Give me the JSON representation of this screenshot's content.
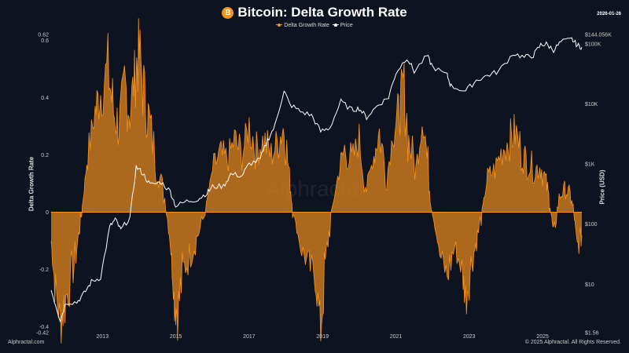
{
  "header": {
    "title": "Bitcoin: Delta Growth Rate",
    "logo_icon": "bitcoin-icon",
    "date": "2026-01-26"
  },
  "footer": {
    "left": "Alphractal.com",
    "right": "© 2025 Alphractal. All Rights Reserved.",
    "watermark": "Alphractal"
  },
  "chart_data": {
    "type": "area",
    "title": "Bitcoin: Delta Growth Rate",
    "ylabel": "Delta Growth Rate",
    "y2label": "Price (USD)",
    "xlim": [
      2011.6,
      2026.07
    ],
    "ylim": [
      -0.42,
      0.62
    ],
    "y2lim": [
      1.56,
      144056
    ],
    "y2scale": "log",
    "x_ticks": [
      "2013",
      "2015",
      "2017",
      "2019",
      "2021",
      "2023",
      "2025"
    ],
    "y_ticks": [
      "0.62",
      "0.6",
      "0.4",
      "0.2",
      "0",
      "-0.2",
      "-0.4",
      "-0.42"
    ],
    "y2_ticks": [
      "$144.056K",
      "$100K",
      "$10K",
      "$1K",
      "$100",
      "$10",
      "$1.56"
    ],
    "legend": {
      "placement": "top-center",
      "items": [
        "Delta Growth Rate",
        "Price"
      ]
    },
    "grid": false,
    "colors": {
      "delta": "#f7931a",
      "price": "#ffffff",
      "background": "#0d1320"
    },
    "series": [
      {
        "name": "Delta Growth Rate",
        "axis": "left",
        "points": [
          [
            2011.6,
            -0.1
          ],
          [
            2011.7,
            -0.25
          ],
          [
            2011.85,
            -0.38
          ],
          [
            2012.0,
            -0.3
          ],
          [
            2012.2,
            -0.2
          ],
          [
            2012.35,
            -0.08
          ],
          [
            2012.45,
            0.02
          ],
          [
            2012.6,
            0.2
          ],
          [
            2012.8,
            0.35
          ],
          [
            2012.95,
            0.42
          ],
          [
            2013.15,
            0.5
          ],
          [
            2013.3,
            0.35
          ],
          [
            2013.45,
            0.3
          ],
          [
            2013.6,
            0.45
          ],
          [
            2013.75,
            0.35
          ],
          [
            2013.9,
            0.5
          ],
          [
            2014.0,
            0.55
          ],
          [
            2014.15,
            0.4
          ],
          [
            2014.3,
            0.3
          ],
          [
            2014.5,
            0.15
          ],
          [
            2014.7,
            0.05
          ],
          [
            2014.85,
            -0.1
          ],
          [
            2014.95,
            -0.3
          ],
          [
            2015.05,
            -0.35
          ],
          [
            2015.2,
            -0.2
          ],
          [
            2015.4,
            -0.15
          ],
          [
            2015.6,
            -0.08
          ],
          [
            2015.8,
            0.0
          ],
          [
            2016.0,
            0.15
          ],
          [
            2016.2,
            0.2
          ],
          [
            2016.4,
            0.18
          ],
          [
            2016.6,
            0.25
          ],
          [
            2016.8,
            0.2
          ],
          [
            2017.0,
            0.3
          ],
          [
            2017.2,
            0.22
          ],
          [
            2017.4,
            0.25
          ],
          [
            2017.6,
            0.2
          ],
          [
            2017.8,
            0.25
          ],
          [
            2017.95,
            0.3
          ],
          [
            2018.1,
            0.12
          ],
          [
            2018.2,
            0.0
          ],
          [
            2018.4,
            -0.12
          ],
          [
            2018.6,
            -0.18
          ],
          [
            2018.8,
            -0.22
          ],
          [
            2018.95,
            -0.4
          ],
          [
            2019.1,
            -0.15
          ],
          [
            2019.25,
            0.0
          ],
          [
            2019.45,
            0.15
          ],
          [
            2019.6,
            0.22
          ],
          [
            2019.8,
            0.18
          ],
          [
            2020.0,
            0.25
          ],
          [
            2020.2,
            0.08
          ],
          [
            2020.4,
            0.2
          ],
          [
            2020.55,
            0.28
          ],
          [
            2020.75,
            0.12
          ],
          [
            2020.95,
            0.3
          ],
          [
            2021.1,
            0.35
          ],
          [
            2021.2,
            0.45
          ],
          [
            2021.35,
            0.25
          ],
          [
            2021.55,
            0.15
          ],
          [
            2021.75,
            0.35
          ],
          [
            2021.9,
            0.1
          ],
          [
            2022.0,
            0.0
          ],
          [
            2022.2,
            -0.15
          ],
          [
            2022.4,
            -0.22
          ],
          [
            2022.6,
            -0.12
          ],
          [
            2022.8,
            -0.2
          ],
          [
            2022.9,
            -0.3
          ],
          [
            2023.05,
            -0.18
          ],
          [
            2023.2,
            -0.1
          ],
          [
            2023.35,
            0.0
          ],
          [
            2023.5,
            0.12
          ],
          [
            2023.7,
            0.15
          ],
          [
            2023.9,
            0.22
          ],
          [
            2024.1,
            0.25
          ],
          [
            2024.25,
            0.28
          ],
          [
            2024.45,
            0.2
          ],
          [
            2024.6,
            0.17
          ],
          [
            2024.8,
            0.15
          ],
          [
            2024.95,
            0.16
          ],
          [
            2025.1,
            0.1
          ],
          [
            2025.2,
            0.03
          ],
          [
            2025.3,
            -0.08
          ],
          [
            2025.45,
            0.05
          ],
          [
            2025.6,
            0.08
          ],
          [
            2025.75,
            0.06
          ],
          [
            2025.85,
            0.0
          ],
          [
            2025.95,
            -0.12
          ],
          [
            2026.07,
            -0.08
          ]
        ]
      },
      {
        "name": "Price",
        "axis": "right",
        "points": [
          [
            2011.6,
            8
          ],
          [
            2011.75,
            4
          ],
          [
            2011.85,
            2.5
          ],
          [
            2012.0,
            5
          ],
          [
            2012.3,
            5
          ],
          [
            2012.5,
            7
          ],
          [
            2012.7,
            11
          ],
          [
            2012.95,
            13
          ],
          [
            2013.2,
            90
          ],
          [
            2013.35,
            120
          ],
          [
            2013.5,
            80
          ],
          [
            2013.75,
            130
          ],
          [
            2013.92,
            900
          ],
          [
            2014.1,
            700
          ],
          [
            2014.3,
            450
          ],
          [
            2014.6,
            500
          ],
          [
            2014.85,
            350
          ],
          [
            2015.0,
            200
          ],
          [
            2015.3,
            240
          ],
          [
            2015.6,
            260
          ],
          [
            2015.85,
            330
          ],
          [
            2016.0,
            420
          ],
          [
            2016.3,
            430
          ],
          [
            2016.5,
            680
          ],
          [
            2016.8,
            640
          ],
          [
            2017.0,
            1000
          ],
          [
            2017.3,
            1200
          ],
          [
            2017.5,
            2500
          ],
          [
            2017.7,
            4300
          ],
          [
            2017.95,
            17000
          ],
          [
            2018.1,
            10000
          ],
          [
            2018.4,
            7500
          ],
          [
            2018.7,
            6500
          ],
          [
            2018.95,
            3500
          ],
          [
            2019.2,
            4000
          ],
          [
            2019.5,
            11000
          ],
          [
            2019.8,
            8000
          ],
          [
            2020.0,
            8500
          ],
          [
            2020.2,
            6000
          ],
          [
            2020.5,
            9500
          ],
          [
            2020.8,
            13000
          ],
          [
            2021.0,
            33000
          ],
          [
            2021.3,
            60000
          ],
          [
            2021.5,
            35000
          ],
          [
            2021.85,
            64000
          ],
          [
            2022.0,
            42000
          ],
          [
            2022.4,
            30000
          ],
          [
            2022.5,
            20000
          ],
          [
            2022.9,
            16500
          ],
          [
            2023.2,
            25000
          ],
          [
            2023.5,
            30000
          ],
          [
            2023.8,
            35000
          ],
          [
            2024.2,
            70000
          ],
          [
            2024.5,
            60000
          ],
          [
            2024.75,
            65000
          ],
          [
            2024.95,
            97000
          ],
          [
            2025.1,
            100000
          ],
          [
            2025.3,
            80000
          ],
          [
            2025.5,
            108000
          ],
          [
            2025.8,
            120000
          ],
          [
            2025.95,
            95000
          ],
          [
            2026.07,
            89000
          ]
        ]
      }
    ]
  }
}
